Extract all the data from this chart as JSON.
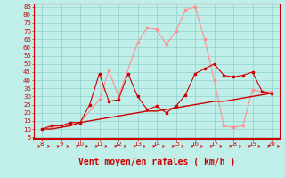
{
  "xlabel": "Vent moyen/en rafales ( km/h )",
  "background_color": "#c0eee8",
  "grid_color": "#90d0cc",
  "x_ticks": [
    8,
    9,
    10,
    11,
    12,
    13,
    14,
    15,
    16,
    17,
    18,
    19,
    20
  ],
  "y_ticks": [
    5,
    10,
    15,
    20,
    25,
    30,
    35,
    40,
    45,
    50,
    55,
    60,
    65,
    70,
    75,
    80,
    85
  ],
  "ylim": [
    4,
    87
  ],
  "xlim": [
    7.6,
    20.4
  ],
  "line1_x": [
    8,
    8.5,
    9,
    9.5,
    10,
    10.5,
    11,
    11.5,
    12,
    12.5,
    13,
    13.5,
    14,
    14.5,
    15,
    15.5,
    16,
    16.5,
    17,
    17.5,
    18,
    18.5,
    19,
    19.5,
    20
  ],
  "line1_y": [
    10,
    10,
    11,
    12,
    14,
    15,
    16,
    17,
    18,
    19,
    20,
    21,
    21,
    22,
    23,
    24,
    25,
    26,
    27,
    27,
    28,
    29,
    30,
    31,
    32
  ],
  "line1_color": "#cc0000",
  "line2_x": [
    8,
    8.5,
    9,
    9.5,
    10,
    10.5,
    11,
    11.5,
    12,
    12.5,
    13,
    13.5,
    14,
    14.5,
    15,
    15.5,
    16,
    16.5,
    17,
    17.5,
    18,
    18.5,
    19,
    19.5,
    20
  ],
  "line2_y": [
    10,
    12,
    12,
    14,
    14,
    25,
    44,
    27,
    28,
    44,
    30,
    22,
    24,
    20,
    24,
    31,
    44,
    47,
    50,
    43,
    42,
    43,
    45,
    33,
    32
  ],
  "line2_color": "#cc0000",
  "line3_x": [
    8,
    9,
    10,
    11,
    11.5,
    12,
    13,
    13.5,
    14,
    14.5,
    15,
    15.5,
    16,
    16.5,
    17,
    17.5,
    18,
    18.5,
    19,
    19.5,
    20
  ],
  "line3_y": [
    10,
    12,
    14,
    28,
    46,
    30,
    63,
    72,
    71,
    62,
    70,
    83,
    85,
    65,
    40,
    12,
    11,
    12,
    34,
    33,
    33
  ],
  "line3_color": "#ff9090",
  "arrow_color": "#cc0000",
  "xlabel_color": "#cc0000",
  "tick_color": "#cc0000",
  "xlabel_fontsize": 7,
  "tick_fontsize": 5,
  "axis_line_color": "#cc0000"
}
